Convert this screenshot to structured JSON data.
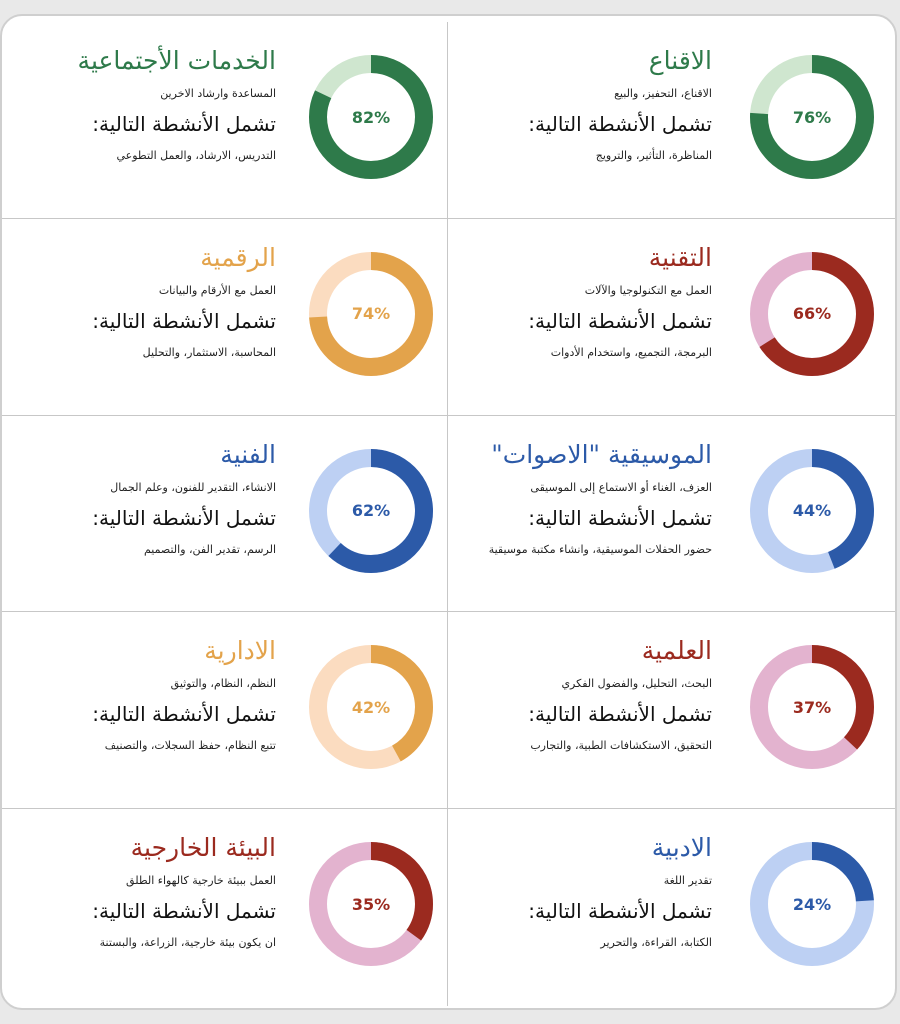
{
  "chart_data": [
    {
      "type": "pie",
      "title": "الخدمات الأجتماعية",
      "description": "المساعدة وارشاد الاخرين",
      "subheading": "تشمل الأنشطة التالية:",
      "activities": "التدريس، الارشاد، والعمل التطوعي",
      "value": 82,
      "label": "82%",
      "color": "#2e7a4a",
      "track": "#cfe6cf",
      "label_color": "#2e7a4a"
    },
    {
      "type": "pie",
      "title": "الاقناع",
      "description": "الاقناع، التحفيز، والبيع",
      "subheading": "تشمل الأنشطة التالية:",
      "activities": "المناظرة، التأثير، والترويج",
      "value": 76,
      "label": "76%",
      "color": "#2e7a4a",
      "track": "#cfe6cf",
      "label_color": "#2e7a4a"
    },
    {
      "type": "pie",
      "title": "الرقمية",
      "description": "العمل مع الأرقام والبيانات",
      "subheading": "تشمل الأنشطة التالية:",
      "activities": "المحاسبة، الاستثمار، والتحليل",
      "value": 74,
      "label": "74%",
      "color": "#e3a34b",
      "track": "#fbdcc0",
      "label_color": "#e3a34b"
    },
    {
      "type": "pie",
      "title": "التقنية",
      "description": "العمل مع التكنولوجيا والآلات",
      "subheading": "تشمل الأنشطة التالية:",
      "activities": "البرمجة، التجميع، واستخدام الأدوات",
      "value": 66,
      "label": "66%",
      "color": "#9b2a1f",
      "track": "#e3b3cf",
      "label_color": "#9b2a1f"
    },
    {
      "type": "pie",
      "title": "الفنية",
      "description": "الانشاء، التقدير للفنون، وعلم الجمال",
      "subheading": "تشمل الأنشطة التالية:",
      "activities": "الرسم، تقدير الفن، والتصميم",
      "value": 62,
      "label": "62%",
      "color": "#2c5aa8",
      "track": "#bdd0f3",
      "label_color": "#2c5aa8"
    },
    {
      "type": "pie",
      "title": "الموسيقية \"الاصوات\"",
      "description": "العزف، الغناء أو الاستماع إلى الموسيقى",
      "subheading": "تشمل الأنشطة التالية:",
      "activities": "حضور الحفلات الموسيقية، وانشاء مكتبة موسيقية",
      "value": 44,
      "label": "44%",
      "color": "#2c5aa8",
      "track": "#bdd0f3",
      "label_color": "#2c5aa8"
    },
    {
      "type": "pie",
      "title": "الادارية",
      "description": "النظم، النظام، والتوثيق",
      "subheading": "تشمل الأنشطة التالية:",
      "activities": "تتبع النظام، حفظ السجلات، والتصنيف",
      "value": 42,
      "label": "42%",
      "color": "#e3a34b",
      "track": "#fbdcc0",
      "label_color": "#e3a34b"
    },
    {
      "type": "pie",
      "title": "العلمية",
      "description": "البحث، التحليل، والفضول الفكري",
      "subheading": "تشمل الأنشطة التالية:",
      "activities": "التحقيق، الاستكشافات الطبية، والتجارب",
      "value": 37,
      "label": "37%",
      "color": "#9b2a1f",
      "track": "#e3b3cf",
      "label_color": "#9b2a1f"
    },
    {
      "type": "pie",
      "title": "البيئة الخارجية",
      "description": "العمل ببيئة خارجية كالهواء الطلق",
      "subheading": "تشمل الأنشطة التالية:",
      "activities": "ان يكون بيئة خارجية، الزراعة، والبستنة",
      "value": 35,
      "label": "35%",
      "color": "#9b2a1f",
      "track": "#e3b3cf",
      "label_color": "#9b2a1f"
    },
    {
      "type": "pie",
      "title": "الادبية",
      "description": "تقدير اللغة",
      "subheading": "تشمل الأنشطة التالية:",
      "activities": "الكتابة، القراءة، والتحرير",
      "value": 24,
      "label": "24%",
      "color": "#2c5aa8",
      "track": "#bdd0f3",
      "label_color": "#2c5aa8"
    }
  ],
  "title_colors": [
    "#2e7a4a",
    "#2e7a4a",
    "#e3a34b",
    "#9b2a1f",
    "#2c5aa8",
    "#2c5aa8",
    "#e3a34b",
    "#9b2a1f",
    "#9b2a1f",
    "#2c5aa8"
  ]
}
